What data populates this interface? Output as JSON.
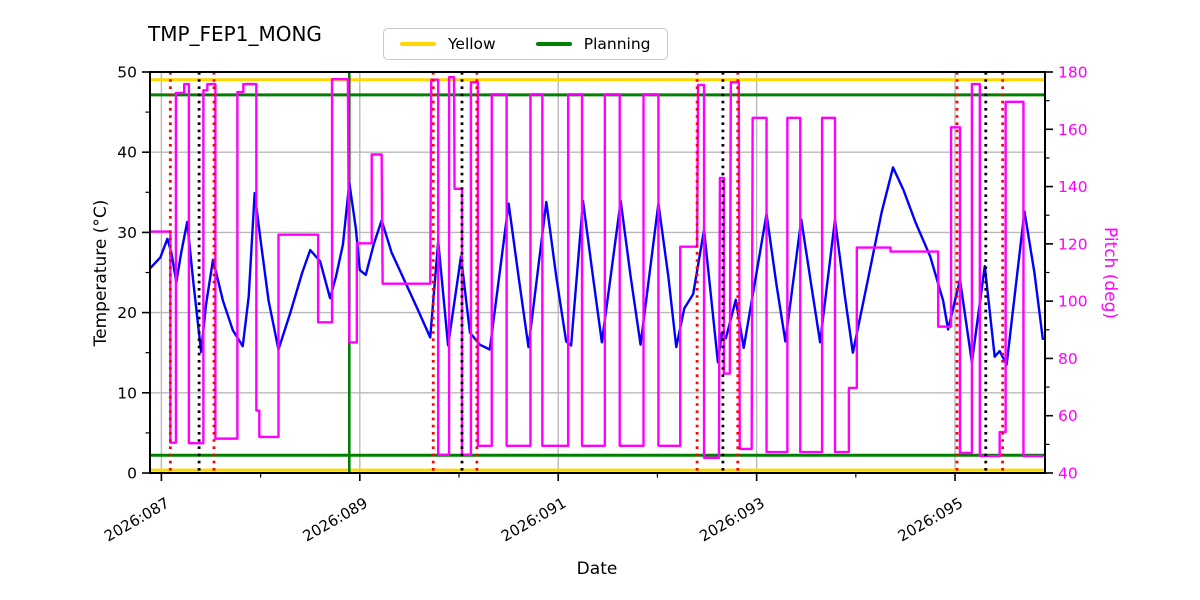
{
  "chart_data": {
    "type": "line",
    "title": "TMP_FEP1_MONG",
    "xlabel": "Date",
    "ylabel_left": "Temperature (°C)",
    "ylabel_right": "Pitch (deg)",
    "legend": [
      {
        "label": "Yellow",
        "color": "#FFD700"
      },
      {
        "label": "Planning",
        "color": "#008000"
      }
    ],
    "x_domain": [
      86.885,
      95.907
    ],
    "x_major_ticks": [
      {
        "value": 87,
        "label": "2026:087"
      },
      {
        "value": 89,
        "label": "2026:089"
      },
      {
        "value": 91,
        "label": "2026:091"
      },
      {
        "value": 93,
        "label": "2026:093"
      },
      {
        "value": 95,
        "label": "2026:095"
      }
    ],
    "x_minor_ticks": [
      88,
      90,
      92,
      94
    ],
    "y_left": {
      "min": 0,
      "max": 50,
      "major_ticks": [
        0,
        10,
        20,
        30,
        40,
        50
      ],
      "minor_ticks": [
        5,
        15,
        25,
        35,
        45
      ],
      "label_color": "#000000"
    },
    "y_right": {
      "min": 40,
      "max": 180,
      "major_ticks": [
        40,
        60,
        80,
        100,
        120,
        140,
        160,
        180
      ],
      "minor_ticks": [
        50,
        70,
        90,
        110,
        130,
        150,
        170
      ],
      "label_color": "#FF00FF"
    },
    "grid_color": "#b9b9b9",
    "limit_lines": [
      {
        "name": "yellow-high",
        "axis": "right",
        "value": 177.3,
        "color": "#FFD700"
      },
      {
        "name": "yellow-low",
        "axis": "right",
        "value": 41.0,
        "color": "#FFD700"
      },
      {
        "name": "planning-high",
        "axis": "right",
        "value": 172.0,
        "color": "#008000"
      },
      {
        "name": "planning-low",
        "axis": "right",
        "value": 46.2,
        "color": "#008000"
      }
    ],
    "event_lines": {
      "green_solid": [
        88.894
      ],
      "red_dotted": [
        87.09,
        87.53,
        89.74,
        90.18,
        92.4,
        92.81,
        95.02,
        95.48
      ],
      "black_dotted": [
        87.38,
        90.03,
        92.66,
        95.31
      ]
    },
    "series": [
      {
        "name": "temperature",
        "axis": "left",
        "color": "#0000FF",
        "points": [
          [
            86.885,
            25.5
          ],
          [
            86.99,
            26.9
          ],
          [
            87.06,
            29.2
          ],
          [
            87.1,
            27.5
          ],
          [
            87.15,
            23.8
          ],
          [
            87.2,
            27.5
          ],
          [
            87.26,
            31.3
          ],
          [
            87.32,
            24.0
          ],
          [
            87.4,
            15.1
          ],
          [
            87.45,
            21.0
          ],
          [
            87.52,
            26.6
          ],
          [
            87.62,
            21.5
          ],
          [
            87.72,
            17.8
          ],
          [
            87.82,
            15.8
          ],
          [
            87.88,
            22.0
          ],
          [
            87.94,
            34.9
          ],
          [
            88.0,
            29.0
          ],
          [
            88.08,
            21.5
          ],
          [
            88.18,
            15.4
          ],
          [
            88.3,
            20.0
          ],
          [
            88.42,
            25.0
          ],
          [
            88.5,
            27.8
          ],
          [
            88.6,
            26.4
          ],
          [
            88.7,
            21.8
          ],
          [
            88.76,
            24.5
          ],
          [
            88.83,
            28.5
          ],
          [
            88.894,
            36.2
          ],
          [
            88.96,
            30.5
          ],
          [
            89.0,
            25.3
          ],
          [
            89.06,
            24.7
          ],
          [
            89.14,
            28.5
          ],
          [
            89.22,
            31.5
          ],
          [
            89.32,
            27.5
          ],
          [
            89.45,
            24.0
          ],
          [
            89.58,
            20.5
          ],
          [
            89.71,
            16.9
          ],
          [
            89.79,
            28.9
          ],
          [
            89.89,
            15.9
          ],
          [
            90.02,
            27.0
          ],
          [
            90.11,
            17.5
          ],
          [
            90.21,
            16.0
          ],
          [
            90.31,
            15.4
          ],
          [
            90.5,
            33.6
          ],
          [
            90.6,
            24.5
          ],
          [
            90.7,
            15.7
          ],
          [
            90.88,
            33.8
          ],
          [
            90.98,
            24.5
          ],
          [
            91.08,
            16.4
          ],
          [
            91.13,
            15.9
          ],
          [
            91.25,
            33.9
          ],
          [
            91.35,
            24.5
          ],
          [
            91.44,
            16.3
          ],
          [
            91.63,
            33.9
          ],
          [
            91.73,
            24.5
          ],
          [
            91.83,
            16.0
          ],
          [
            92.01,
            33.6
          ],
          [
            92.11,
            24.5
          ],
          [
            92.19,
            15.7
          ],
          [
            92.27,
            20.5
          ],
          [
            92.36,
            22.3
          ],
          [
            92.47,
            30.3
          ],
          [
            92.61,
            13.8
          ],
          [
            92.65,
            17.5
          ],
          [
            92.69,
            16.8
          ],
          [
            92.79,
            21.6
          ],
          [
            92.87,
            15.6
          ],
          [
            93.1,
            32.3
          ],
          [
            93.2,
            23.5
          ],
          [
            93.29,
            16.4
          ],
          [
            93.45,
            31.6
          ],
          [
            93.55,
            23.5
          ],
          [
            93.64,
            16.3
          ],
          [
            93.79,
            31.6
          ],
          [
            93.89,
            22.0
          ],
          [
            93.97,
            15.0
          ],
          [
            94.12,
            24.0
          ],
          [
            94.26,
            32.5
          ],
          [
            94.375,
            38.1
          ],
          [
            94.48,
            35.3
          ],
          [
            94.6,
            31.3
          ],
          [
            94.75,
            27.0
          ],
          [
            94.88,
            21.5
          ],
          [
            94.93,
            17.9
          ],
          [
            95.05,
            24.1
          ],
          [
            95.17,
            13.8
          ],
          [
            95.3,
            25.8
          ],
          [
            95.4,
            14.5
          ],
          [
            95.45,
            15.2
          ],
          [
            95.52,
            13.5
          ],
          [
            95.7,
            32.6
          ],
          [
            95.8,
            25.0
          ],
          [
            95.886,
            16.6
          ]
        ]
      },
      {
        "name": "pitch",
        "axis": "right",
        "color": "#FF00FF",
        "points": [
          [
            86.885,
            124.3
          ],
          [
            87.09,
            124.3
          ],
          [
            87.09,
            50.6
          ],
          [
            87.146,
            50.6
          ],
          [
            87.146,
            172.7
          ],
          [
            87.23,
            172.7
          ],
          [
            87.23,
            175.8
          ],
          [
            87.277,
            175.8
          ],
          [
            87.277,
            50.4
          ],
          [
            87.423,
            50.4
          ],
          [
            87.423,
            173.6
          ],
          [
            87.463,
            173.6
          ],
          [
            87.463,
            175.8
          ],
          [
            87.544,
            175.8
          ],
          [
            87.544,
            52.0
          ],
          [
            87.766,
            52.0
          ],
          [
            87.766,
            173.0
          ],
          [
            87.826,
            173.0
          ],
          [
            87.826,
            175.8
          ],
          [
            87.957,
            175.8
          ],
          [
            87.957,
            61.8
          ],
          [
            87.987,
            61.8
          ],
          [
            87.987,
            52.6
          ],
          [
            88.18,
            52.6
          ],
          [
            88.18,
            123.2
          ],
          [
            88.58,
            123.2
          ],
          [
            88.58,
            92.6
          ],
          [
            88.72,
            92.6
          ],
          [
            88.72,
            177.5
          ],
          [
            88.88,
            177.5
          ],
          [
            88.894,
            85.6
          ],
          [
            88.97,
            85.6
          ],
          [
            88.97,
            120.2
          ],
          [
            89.12,
            120.2
          ],
          [
            89.12,
            151.2
          ],
          [
            89.22,
            151.2
          ],
          [
            89.23,
            106.1
          ],
          [
            89.71,
            106.1
          ],
          [
            89.72,
            177.3
          ],
          [
            89.79,
            177.3
          ],
          [
            89.79,
            46.4
          ],
          [
            89.9,
            46.4
          ],
          [
            89.9,
            178.2
          ],
          [
            89.95,
            178.2
          ],
          [
            89.955,
            139.2
          ],
          [
            90.03,
            139.2
          ],
          [
            90.03,
            46.4
          ],
          [
            90.12,
            46.4
          ],
          [
            90.12,
            176.4
          ],
          [
            90.19,
            176.4
          ],
          [
            90.19,
            49.5
          ],
          [
            90.33,
            49.5
          ],
          [
            90.33,
            172.2
          ],
          [
            90.48,
            172.2
          ],
          [
            90.48,
            49.5
          ],
          [
            90.72,
            49.5
          ],
          [
            90.72,
            172.2
          ],
          [
            90.84,
            172.2
          ],
          [
            90.84,
            49.5
          ],
          [
            91.1,
            49.5
          ],
          [
            91.1,
            172.2
          ],
          [
            91.24,
            172.2
          ],
          [
            91.24,
            49.5
          ],
          [
            91.47,
            49.5
          ],
          [
            91.47,
            172.2
          ],
          [
            91.62,
            172.2
          ],
          [
            91.62,
            49.5
          ],
          [
            91.86,
            49.5
          ],
          [
            91.86,
            172.2
          ],
          [
            92.01,
            172.2
          ],
          [
            92.01,
            49.5
          ],
          [
            92.23,
            49.5
          ],
          [
            92.23,
            119.0
          ],
          [
            92.4,
            119.0
          ],
          [
            92.41,
            175.5
          ],
          [
            92.47,
            175.5
          ],
          [
            92.47,
            45.3
          ],
          [
            92.62,
            45.3
          ],
          [
            92.63,
            143.0
          ],
          [
            92.67,
            143.0
          ],
          [
            92.67,
            74.7
          ],
          [
            92.73,
            74.7
          ],
          [
            92.74,
            176.4
          ],
          [
            92.82,
            176.4
          ],
          [
            92.83,
            48.4
          ],
          [
            92.95,
            48.4
          ],
          [
            92.96,
            164.0
          ],
          [
            93.1,
            164.0
          ],
          [
            93.1,
            47.3
          ],
          [
            93.31,
            47.3
          ],
          [
            93.31,
            164.0
          ],
          [
            93.44,
            164.0
          ],
          [
            93.44,
            47.3
          ],
          [
            93.66,
            47.3
          ],
          [
            93.66,
            164.0
          ],
          [
            93.79,
            164.0
          ],
          [
            93.79,
            47.3
          ],
          [
            93.93,
            47.3
          ],
          [
            93.93,
            69.7
          ],
          [
            94.01,
            69.7
          ],
          [
            94.01,
            118.7
          ],
          [
            94.35,
            118.7
          ],
          [
            94.35,
            117.3
          ],
          [
            94.83,
            117.3
          ],
          [
            94.83,
            91.1
          ],
          [
            94.96,
            91.1
          ],
          [
            94.96,
            160.7
          ],
          [
            95.05,
            160.7
          ],
          [
            95.05,
            47.0
          ],
          [
            95.17,
            47.0
          ],
          [
            95.17,
            175.8
          ],
          [
            95.25,
            175.8
          ],
          [
            95.25,
            45.9
          ],
          [
            95.45,
            45.9
          ],
          [
            95.45,
            54.3
          ],
          [
            95.51,
            54.3
          ],
          [
            95.51,
            169.6
          ],
          [
            95.69,
            169.6
          ],
          [
            95.69,
            45.9
          ],
          [
            95.886,
            45.9
          ]
        ]
      }
    ]
  }
}
